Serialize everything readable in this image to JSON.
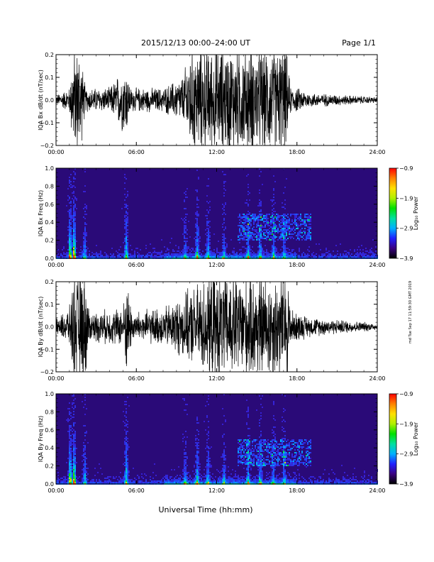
{
  "header": {
    "date_range": "2015/12/13  00:00–24:00 UT",
    "page": "Page 1/1"
  },
  "footer": {
    "xlabel": "Universal Time (hh:mm)",
    "side_stamp": "md Tue Sep 17 11:59:30 GMT 2019"
  },
  "colors": {
    "trace": "#000000",
    "spectrogram_background": "#2a0a78",
    "colorbar": [
      "#000000",
      "#3a0080",
      "#2020ff",
      "#00b0ff",
      "#00e0a0",
      "#00e000",
      "#b0f000",
      "#ffe000",
      "#ff8000",
      "#ff0000"
    ]
  },
  "chart_data": [
    {
      "type": "line",
      "ylabel": "IQA Bx dB/dt (nT/sec)",
      "xlim": [
        0,
        24
      ],
      "ylim": [
        -0.2,
        0.2
      ],
      "x_ticks": [
        "00:00",
        "06:00",
        "12:00",
        "18:00",
        "24:00"
      ],
      "y_ticks": [
        "−0.2",
        "−0.1",
        "0.0",
        "0.1",
        "0.2"
      ],
      "y_tick_values": [
        -0.2,
        -0.1,
        0.0,
        0.1,
        0.2
      ],
      "amplitude_envelope": [
        [
          0,
          0.02
        ],
        [
          1.0,
          0.05
        ],
        [
          1.3,
          0.22
        ],
        [
          1.8,
          0.22
        ],
        [
          2.2,
          0.05
        ],
        [
          4.0,
          0.05
        ],
        [
          5.2,
          0.15
        ],
        [
          5.6,
          0.05
        ],
        [
          8.0,
          0.05
        ],
        [
          9.5,
          0.1
        ],
        [
          10.0,
          0.22
        ],
        [
          16.5,
          0.22
        ],
        [
          17.2,
          0.22
        ],
        [
          17.5,
          0.06
        ],
        [
          19.0,
          0.03
        ],
        [
          24,
          0.012
        ]
      ]
    },
    {
      "type": "heatmap",
      "ylabel": "IQA Bx Freq (Hz)",
      "xlim": [
        0,
        24
      ],
      "ylim": [
        0,
        1.0
      ],
      "x_ticks": [
        "00:00",
        "06:00",
        "12:00",
        "18:00",
        "24:00"
      ],
      "y_ticks": [
        "0.0",
        "0.2",
        "0.4",
        "0.6",
        "0.8",
        "1.0"
      ],
      "y_tick_values": [
        0,
        0.2,
        0.4,
        0.6,
        0.8,
        1.0
      ],
      "colorbar": {
        "label": "Log₁₀ Power",
        "range": [
          -3.9,
          -0.9
        ],
        "ticks": [
          "−0.9",
          "−1.9",
          "−2.9",
          "−3.9"
        ],
        "tick_values": [
          -0.9,
          -1.9,
          -2.9,
          -3.9
        ]
      }
    },
    {
      "type": "line",
      "ylabel": "IQA By dB/dt (nT/sec)",
      "xlim": [
        0,
        24
      ],
      "ylim": [
        -0.2,
        0.2
      ],
      "x_ticks": [
        "00:00",
        "06:00",
        "12:00",
        "18:00",
        "24:00"
      ],
      "y_ticks": [
        "−0.2",
        "−0.1",
        "0.0",
        "0.1",
        "0.2"
      ],
      "y_tick_values": [
        -0.2,
        -0.1,
        0.0,
        0.1,
        0.2
      ],
      "amplitude_envelope": [
        [
          0,
          0.03
        ],
        [
          1.0,
          0.08
        ],
        [
          1.3,
          0.22
        ],
        [
          2.2,
          0.22
        ],
        [
          2.5,
          0.06
        ],
        [
          5.0,
          0.08
        ],
        [
          5.3,
          0.2
        ],
        [
          5.7,
          0.06
        ],
        [
          8.0,
          0.08
        ],
        [
          10.0,
          0.15
        ],
        [
          11.5,
          0.22
        ],
        [
          17.3,
          0.22
        ],
        [
          17.6,
          0.07
        ],
        [
          19.0,
          0.04
        ],
        [
          24,
          0.015
        ]
      ]
    },
    {
      "type": "heatmap",
      "ylabel": "IQA By Freq (Hz)",
      "xlim": [
        0,
        24
      ],
      "ylim": [
        0,
        1.0
      ],
      "x_ticks": [
        "00:00",
        "06:00",
        "12:00",
        "18:00",
        "24:00"
      ],
      "y_ticks": [
        "0.0",
        "0.2",
        "0.4",
        "0.6",
        "0.8",
        "1.0"
      ],
      "y_tick_values": [
        0,
        0.2,
        0.4,
        0.6,
        0.8,
        1.0
      ],
      "colorbar": {
        "label": "Log₁₀ Power",
        "range": [
          -3.9,
          -0.9
        ],
        "ticks": [
          "−0.9",
          "−1.9",
          "−2.9",
          "−3.9"
        ],
        "tick_values": [
          -0.9,
          -1.9,
          -2.9,
          -3.9
        ]
      }
    }
  ]
}
